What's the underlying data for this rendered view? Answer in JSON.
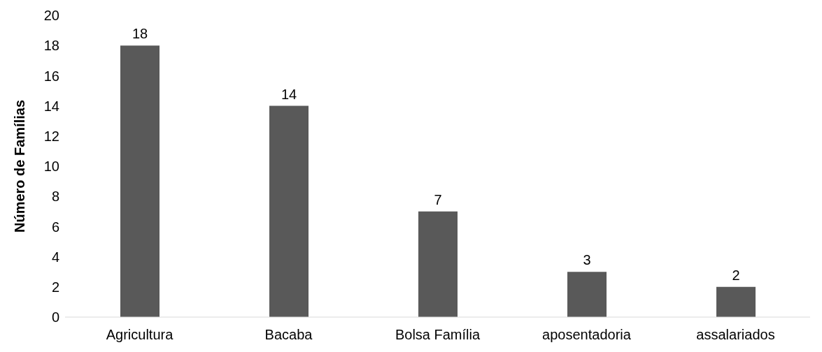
{
  "chart_data": {
    "type": "bar",
    "ylabel": "Número de Famílias",
    "categories": [
      "Agricultura",
      "Bacaba",
      "Bolsa Família",
      "aposentadoria",
      "assalariados"
    ],
    "values": [
      18,
      14,
      7,
      3,
      2
    ],
    "color": "#595959",
    "ylim": [
      0,
      20
    ],
    "yticks": [
      0,
      2,
      4,
      6,
      8,
      10,
      12,
      14,
      16,
      18,
      20
    ],
    "grid": false,
    "data_labels": true,
    "legend": false
  }
}
